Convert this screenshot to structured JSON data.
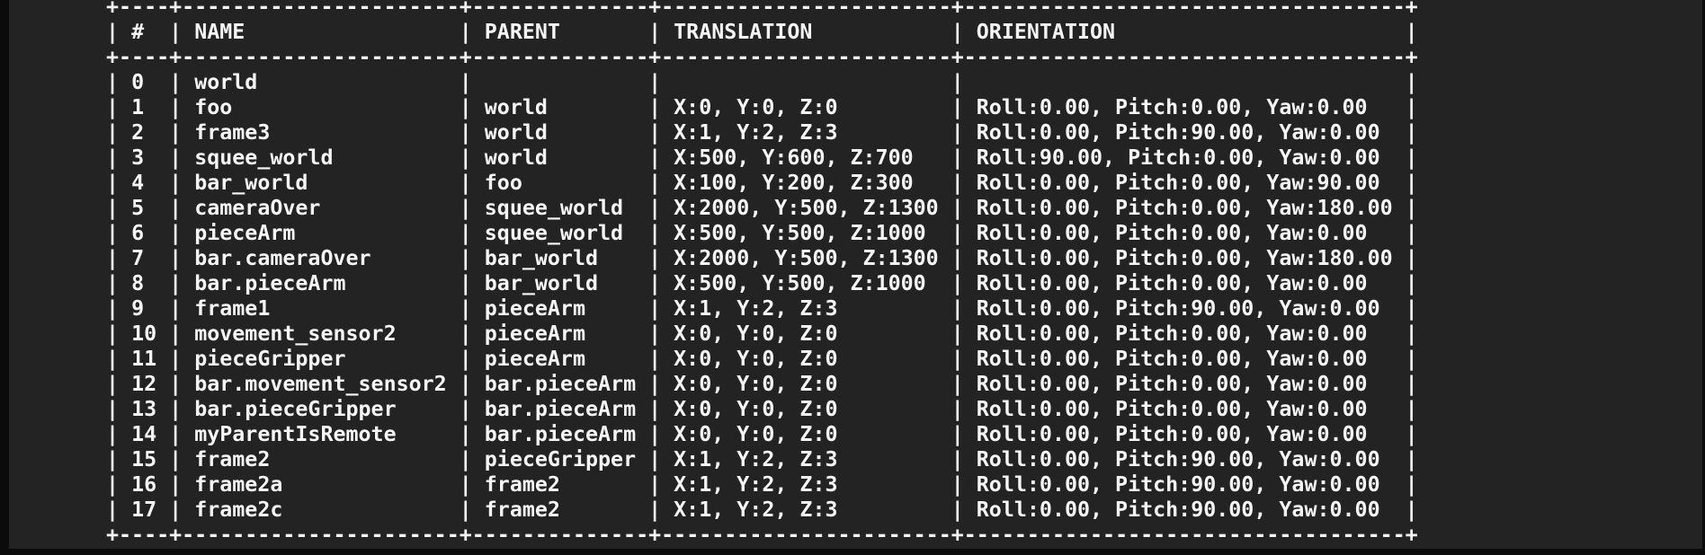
{
  "colors": {
    "frame_bg": "#0b0b0b",
    "terminal_bg": "#232323",
    "text": "#f5f5f5"
  },
  "table": {
    "columns": [
      {
        "key": "index",
        "label": "#"
      },
      {
        "key": "name",
        "label": "NAME"
      },
      {
        "key": "parent",
        "label": "PARENT"
      },
      {
        "key": "translation",
        "label": "TRANSLATION"
      },
      {
        "key": "orientation",
        "label": "ORIENTATION"
      }
    ],
    "rows": [
      {
        "index": "0",
        "name": "world",
        "parent": "",
        "translation": "",
        "orientation": ""
      },
      {
        "index": "1",
        "name": "foo",
        "parent": "world",
        "translation": "X:0, Y:0, Z:0",
        "orientation": "Roll:0.00, Pitch:0.00, Yaw:0.00"
      },
      {
        "index": "2",
        "name": "frame3",
        "parent": "world",
        "translation": "X:1, Y:2, Z:3",
        "orientation": "Roll:0.00, Pitch:90.00, Yaw:0.00"
      },
      {
        "index": "3",
        "name": "squee_world",
        "parent": "world",
        "translation": "X:500, Y:600, Z:700",
        "orientation": "Roll:90.00, Pitch:0.00, Yaw:0.00"
      },
      {
        "index": "4",
        "name": "bar_world",
        "parent": "foo",
        "translation": "X:100, Y:200, Z:300",
        "orientation": "Roll:0.00, Pitch:0.00, Yaw:90.00"
      },
      {
        "index": "5",
        "name": "cameraOver",
        "parent": "squee_world",
        "translation": "X:2000, Y:500, Z:1300",
        "orientation": "Roll:0.00, Pitch:0.00, Yaw:180.00"
      },
      {
        "index": "6",
        "name": "pieceArm",
        "parent": "squee_world",
        "translation": "X:500, Y:500, Z:1000",
        "orientation": "Roll:0.00, Pitch:0.00, Yaw:0.00"
      },
      {
        "index": "7",
        "name": "bar.cameraOver",
        "parent": "bar_world",
        "translation": "X:2000, Y:500, Z:1300",
        "orientation": "Roll:0.00, Pitch:0.00, Yaw:180.00"
      },
      {
        "index": "8",
        "name": "bar.pieceArm",
        "parent": "bar_world",
        "translation": "X:500, Y:500, Z:1000",
        "orientation": "Roll:0.00, Pitch:0.00, Yaw:0.00"
      },
      {
        "index": "9",
        "name": "frame1",
        "parent": "pieceArm",
        "translation": "X:1, Y:2, Z:3",
        "orientation": "Roll:0.00, Pitch:90.00, Yaw:0.00"
      },
      {
        "index": "10",
        "name": "movement_sensor2",
        "parent": "pieceArm",
        "translation": "X:0, Y:0, Z:0",
        "orientation": "Roll:0.00, Pitch:0.00, Yaw:0.00"
      },
      {
        "index": "11",
        "name": "pieceGripper",
        "parent": "pieceArm",
        "translation": "X:0, Y:0, Z:0",
        "orientation": "Roll:0.00, Pitch:0.00, Yaw:0.00"
      },
      {
        "index": "12",
        "name": "bar.movement_sensor2",
        "parent": "bar.pieceArm",
        "translation": "X:0, Y:0, Z:0",
        "orientation": "Roll:0.00, Pitch:0.00, Yaw:0.00"
      },
      {
        "index": "13",
        "name": "bar.pieceGripper",
        "parent": "bar.pieceArm",
        "translation": "X:0, Y:0, Z:0",
        "orientation": "Roll:0.00, Pitch:0.00, Yaw:0.00"
      },
      {
        "index": "14",
        "name": "myParentIsRemote",
        "parent": "bar.pieceArm",
        "translation": "X:0, Y:0, Z:0",
        "orientation": "Roll:0.00, Pitch:0.00, Yaw:0.00"
      },
      {
        "index": "15",
        "name": "frame2",
        "parent": "pieceGripper",
        "translation": "X:1, Y:2, Z:3",
        "orientation": "Roll:0.00, Pitch:90.00, Yaw:0.00"
      },
      {
        "index": "16",
        "name": "frame2a",
        "parent": "frame2",
        "translation": "X:1, Y:2, Z:3",
        "orientation": "Roll:0.00, Pitch:90.00, Yaw:0.00"
      },
      {
        "index": "17",
        "name": "frame2c",
        "parent": "frame2",
        "translation": "X:1, Y:2, Z:3",
        "orientation": "Roll:0.00, Pitch:90.00, Yaw:0.00"
      }
    ]
  }
}
